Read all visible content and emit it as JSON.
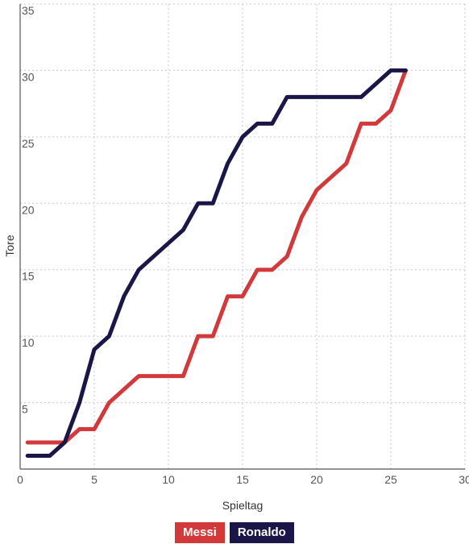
{
  "chart_data": {
    "type": "line",
    "title": "",
    "xlabel": "Spieltag",
    "ylabel": "Tore",
    "xlim": [
      0,
      30
    ],
    "ylim": [
      0,
      35
    ],
    "xticks": [
      "0",
      "5",
      "10",
      "15",
      "20",
      "25",
      "30"
    ],
    "yticks": [
      "5",
      "10",
      "15",
      "20",
      "25",
      "30",
      "35"
    ],
    "grid": true,
    "legend_position": "bottom-center",
    "series": [
      {
        "name": "Messi",
        "color": "#d2393b",
        "points": [
          [
            0.5,
            2
          ],
          [
            1,
            2
          ],
          [
            2,
            2
          ],
          [
            3,
            2
          ],
          [
            4,
            3
          ],
          [
            5,
            3
          ],
          [
            6,
            5
          ],
          [
            7,
            6
          ],
          [
            8,
            7
          ],
          [
            9,
            7
          ],
          [
            10,
            7
          ],
          [
            11,
            7
          ],
          [
            12,
            10
          ],
          [
            13,
            10
          ],
          [
            14,
            13
          ],
          [
            15,
            13
          ],
          [
            16,
            15
          ],
          [
            17,
            15
          ],
          [
            18,
            16
          ],
          [
            19,
            19
          ],
          [
            20,
            21
          ],
          [
            21,
            22
          ],
          [
            22,
            23
          ],
          [
            23,
            26
          ],
          [
            24,
            26
          ],
          [
            25,
            27
          ],
          [
            26,
            30
          ]
        ]
      },
      {
        "name": "Ronaldo",
        "color": "#1a1748",
        "points": [
          [
            0.5,
            1
          ],
          [
            1,
            1
          ],
          [
            2,
            1
          ],
          [
            3,
            2
          ],
          [
            4,
            5
          ],
          [
            5,
            9
          ],
          [
            6,
            10
          ],
          [
            7,
            13
          ],
          [
            8,
            15
          ],
          [
            9,
            16
          ],
          [
            10,
            17
          ],
          [
            11,
            18
          ],
          [
            12,
            20
          ],
          [
            13,
            20
          ],
          [
            14,
            23
          ],
          [
            15,
            25
          ],
          [
            16,
            26
          ],
          [
            17,
            26
          ],
          [
            18,
            28
          ],
          [
            19,
            28
          ],
          [
            20,
            28
          ],
          [
            21,
            28
          ],
          [
            22,
            28
          ],
          [
            23,
            28
          ],
          [
            24,
            29
          ],
          [
            25,
            30
          ],
          [
            26,
            30
          ]
        ]
      }
    ]
  }
}
